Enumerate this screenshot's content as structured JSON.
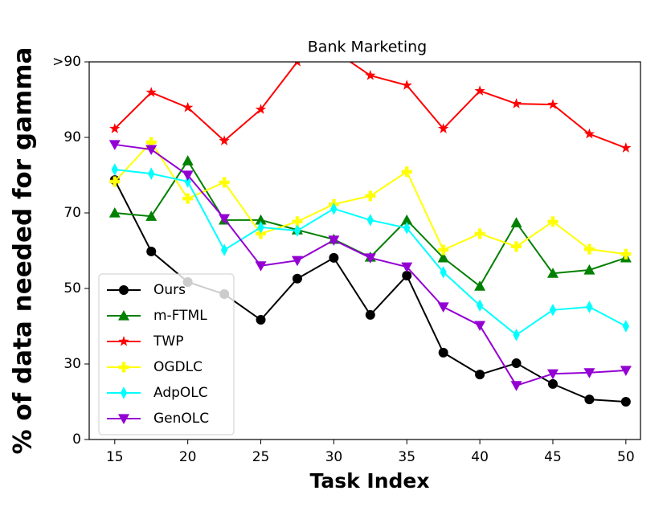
{
  "chart_data": {
    "type": "line",
    "title": "Bank Marketing",
    "xlabel": "Task Index",
    "ylabel": "% of data needed for gamma",
    "x": [
      15,
      17.5,
      20,
      22.5,
      25,
      27.5,
      30,
      32.5,
      35,
      37.5,
      40,
      42.5,
      45,
      47.5,
      50
    ],
    "xlim": [
      13.25,
      51
    ],
    "xticks": [
      15,
      20,
      25,
      30,
      35,
      40,
      45,
      50
    ],
    "ylim": [
      0,
      100
    ],
    "yticks": [
      0,
      {
        "value": 20,
        "label": "30"
      },
      {
        "value": 40,
        "label": "50"
      },
      {
        "value": 60,
        "label": "70"
      },
      {
        "value": 80,
        "label": "90"
      },
      {
        "value": 100,
        "label": ">90"
      }
    ],
    "legend": "lower left",
    "series": [
      {
        "name": "Ours",
        "color": "#000000",
        "marker": "circle",
        "values": [
          68.7,
          49.8,
          41.7,
          38.5,
          31.7,
          42.6,
          48.1,
          33.0,
          43.4,
          23.0,
          17.2,
          20.2,
          14.7,
          10.6,
          10.0
        ]
      },
      {
        "name": "m-FTML",
        "color": "#008000",
        "marker": "triangle-up",
        "values": [
          60,
          59.1,
          73.8,
          58.1,
          58.1,
          55.5,
          53.0,
          48.3,
          58.1,
          48.1,
          40.6,
          57.4,
          44.0,
          44.9,
          48.1
        ]
      },
      {
        "name": "TWP",
        "color": "#ff0000",
        "marker": "star",
        "values": [
          82.3,
          91.9,
          87.9,
          79.1,
          87.4,
          100,
          103,
          96.4,
          93.8,
          82.3,
          92.3,
          88.9,
          88.7,
          80.9,
          77.2
        ]
      },
      {
        "name": "OGDLC",
        "color": "#ffff00",
        "marker": "x",
        "values": [
          68.3,
          78.7,
          63.8,
          68.1,
          54.5,
          57.7,
          62.3,
          64.5,
          70.9,
          50.2,
          54.5,
          51.1,
          57.7,
          50.4,
          49.1
        ]
      },
      {
        "name": "AdpOLC",
        "color": "#00ffff",
        "marker": "diamond",
        "values": [
          71.5,
          70.4,
          68.3,
          50.2,
          56.2,
          55.3,
          61.1,
          58.1,
          56.0,
          44.3,
          35.5,
          27.7,
          34.3,
          35.1,
          30.0
        ]
      },
      {
        "name": "GenOLC",
        "color": "#9400d3",
        "marker": "triangle-down",
        "values": [
          78.1,
          76.8,
          70,
          58.5,
          46,
          47.4,
          52.8,
          48.1,
          45.7,
          35.1,
          30.2,
          14.3,
          17.4,
          17.7,
          18.3
        ]
      }
    ]
  }
}
